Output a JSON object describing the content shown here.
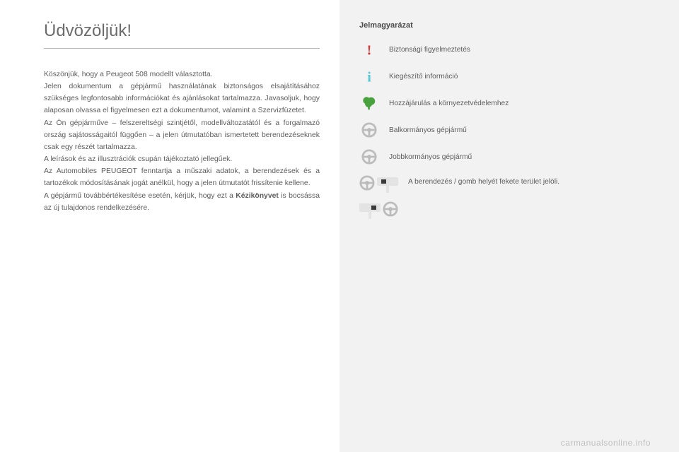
{
  "left": {
    "title": "Üdvözöljük!",
    "paragraphs": [
      "Köszönjük, hogy a Peugeot 508 modellt választotta.",
      "Jelen dokumentum a gépjármű használatának biztonságos elsajátításához szükséges legfontosabb információkat és ajánlásokat tartalmazza. Javasoljuk, hogy alaposan olvassa el figyelmesen ezt a dokumentumot, valamint a Szervizfüzetet.",
      "Az Ön gépjárműve – felszereltségi szintjétől, modellváltozatától és a forgalmazó ország sajátosságaitól függően – a jelen útmutatóban ismertetett berendezéseknek csak egy részét tartalmazza.",
      "A leírások és az illusztrációk csupán tájékoztató jellegűek.",
      "Az Automobiles PEUGEOT fenntartja a műszaki adatok, a berendezések és a tartozékok módosításának jogát anélkül, hogy a jelen útmutatót frissítenie kellene.",
      "A gépjármű továbbértékesítése esetén, kérjük, hogy ezt a Kézikönyvet is bocsássa az új tulajdonos rendelkezésére."
    ],
    "bold_word": "Kézikönyvet"
  },
  "right": {
    "title": "Jelmagyarázat",
    "items": [
      {
        "icon": "warning",
        "label": "Biztonsági figyelmeztetés"
      },
      {
        "icon": "info",
        "label": "Kiegészítő információ"
      },
      {
        "icon": "tree",
        "label": "Hozzájárulás a környezetvédelemhez"
      },
      {
        "icon": "wheel-l",
        "label": "Balkormányos gépjármű"
      },
      {
        "icon": "wheel-r",
        "label": "Jobbkormányos gépjármű"
      }
    ],
    "combo_label": "A berendezés / gomb helyét fekete terület jelöli."
  },
  "colors": {
    "warning": "#d43a3a",
    "info": "#58c7d6",
    "tree": "#4aa23e",
    "wheel": "#bcbcbc",
    "dash_bg": "#e3e3e3",
    "dash_mark": "#3a3a3a",
    "text": "#5c5c5c"
  },
  "footer": "carmanualsonline.info"
}
